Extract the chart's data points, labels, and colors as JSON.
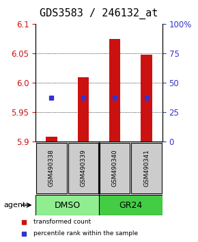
{
  "title": "GDS3583 / 246132_at",
  "samples": [
    "GSM490338",
    "GSM490339",
    "GSM490340",
    "GSM490341"
  ],
  "bar_bottoms": [
    5.9,
    5.9,
    5.9,
    5.9
  ],
  "bar_tops": [
    5.908,
    6.01,
    6.075,
    6.048
  ],
  "blue_y": [
    5.975,
    5.975,
    5.975,
    5.975
  ],
  "blue_pct": [
    37,
    37,
    37,
    37
  ],
  "ylim_left": [
    5.9,
    6.1
  ],
  "ylim_right": [
    0,
    100
  ],
  "yticks_left": [
    5.9,
    5.95,
    6.0,
    6.05,
    6.1
  ],
  "yticks_right": [
    0,
    25,
    50,
    75,
    100
  ],
  "ytick_labels_right": [
    "0",
    "25",
    "50",
    "75",
    "100%"
  ],
  "groups": [
    {
      "label": "DMSO",
      "samples": [
        0,
        1
      ],
      "color": "#90EE90"
    },
    {
      "label": "GR24",
      "samples": [
        2,
        3
      ],
      "color": "#00CC44"
    }
  ],
  "agent_label": "agent",
  "bar_color": "#CC1111",
  "blue_color": "#3333CC",
  "legend_red": "transformed count",
  "legend_blue": "percentile rank within the sample",
  "bar_width": 0.35,
  "background_plot": "#FFFFFF",
  "background_sample": "#CCCCCC",
  "grid_color": "#000000",
  "title_fontsize": 11,
  "tick_fontsize": 8.5,
  "label_fontsize": 8
}
